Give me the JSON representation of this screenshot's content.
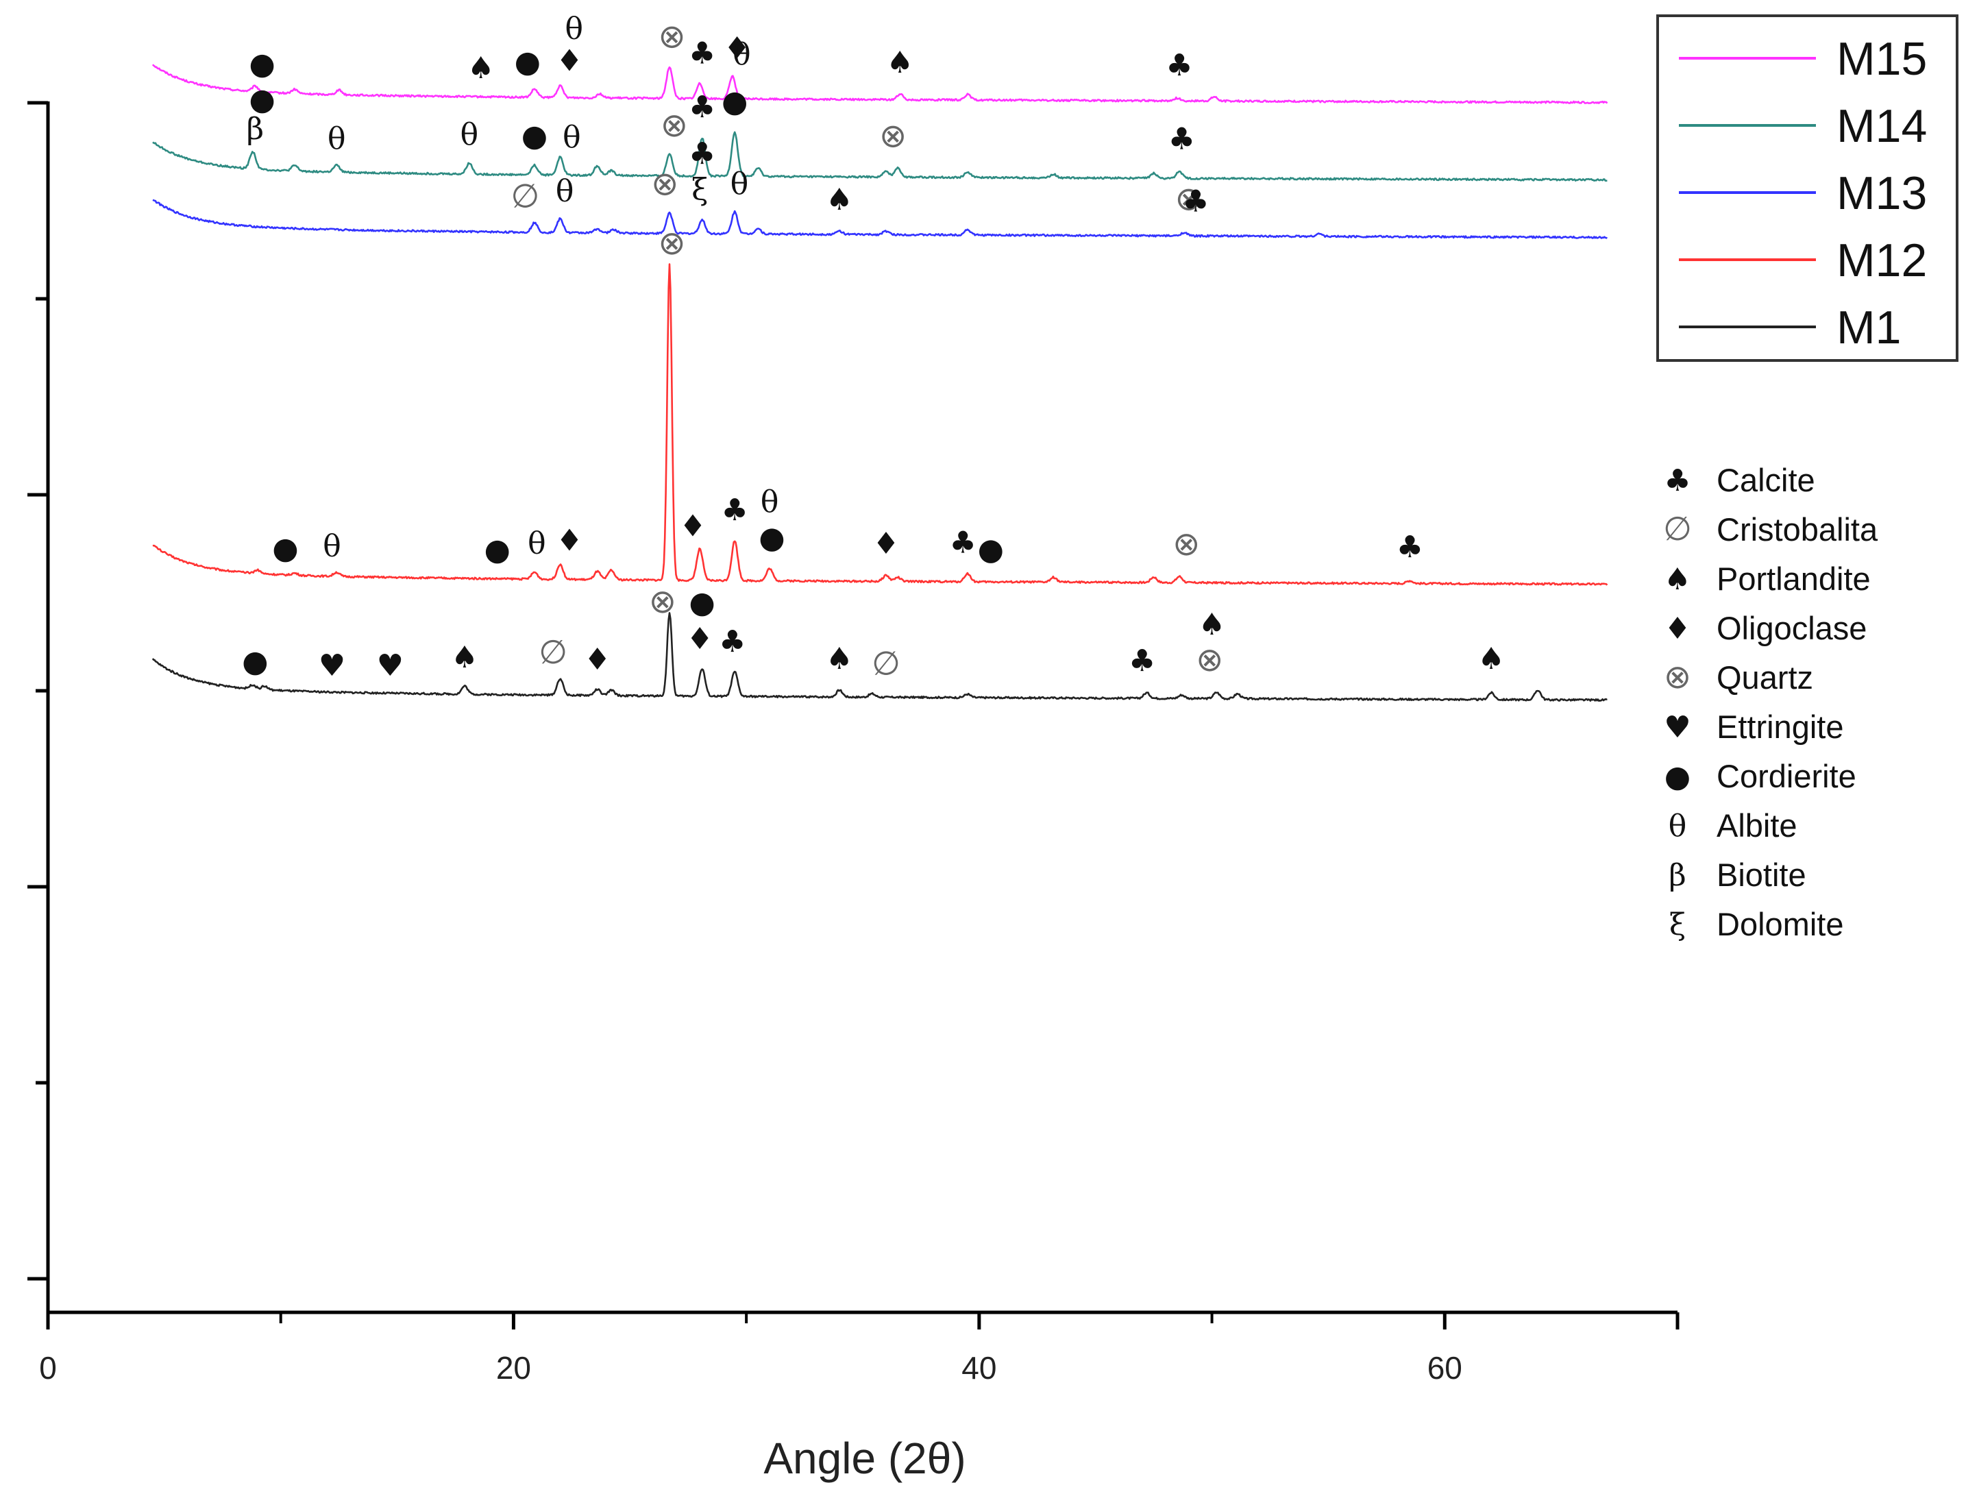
{
  "chart_data": {
    "type": "line",
    "title": "",
    "xlabel": "Angle (2θ)",
    "ylabel": "",
    "xlim": [
      0,
      70
    ],
    "x_ticks": [
      0,
      20,
      40,
      60
    ],
    "x_tick_labels": [
      "0",
      "20",
      "40",
      "60"
    ],
    "x_range": [
      4.5,
      67
    ],
    "grid": false,
    "legend": {
      "position": "top-right",
      "entries": [
        {
          "name": "M15",
          "color": "#ff33ff"
        },
        {
          "name": "M14",
          "color": "#2e8b82"
        },
        {
          "name": "M13",
          "color": "#3333ff"
        },
        {
          "name": "M12",
          "color": "#ff3333"
        },
        {
          "name": "M1",
          "color": "#222222"
        }
      ]
    },
    "series": [
      {
        "name": "M15",
        "color": "#ff33ff",
        "baseline": 142,
        "start_hump": 38,
        "peaks": [
          [
            8.9,
            8
          ],
          [
            10.6,
            6
          ],
          [
            12.5,
            7
          ],
          [
            20.9,
            12
          ],
          [
            22,
            17
          ],
          [
            23.7,
            6
          ],
          [
            26.7,
            46
          ],
          [
            28,
            22
          ],
          [
            29.4,
            33
          ],
          [
            36.6,
            8
          ],
          [
            39.5,
            8
          ],
          [
            48.5,
            4
          ],
          [
            50.1,
            6
          ]
        ]
      },
      {
        "name": "M14",
        "color": "#2e8b82",
        "baseline": 255,
        "start_hump": 38,
        "peaks": [
          [
            8.8,
            25
          ],
          [
            10.6,
            8
          ],
          [
            12.4,
            10
          ],
          [
            18.1,
            16
          ],
          [
            20.9,
            14
          ],
          [
            22,
            26
          ],
          [
            23.6,
            14
          ],
          [
            24.2,
            7
          ],
          [
            26.7,
            32
          ],
          [
            28.1,
            56
          ],
          [
            29.5,
            64
          ],
          [
            30.5,
            12
          ],
          [
            36,
            8
          ],
          [
            36.5,
            14
          ],
          [
            39.5,
            8
          ],
          [
            43.2,
            5
          ],
          [
            47.5,
            7
          ],
          [
            48.6,
            10
          ]
        ]
      },
      {
        "name": "M13",
        "color": "#3333ff",
        "baseline": 339,
        "start_hump": 38,
        "peaks": [
          [
            20.9,
            14
          ],
          [
            22,
            20
          ],
          [
            23.6,
            6
          ],
          [
            24.3,
            5
          ],
          [
            26.7,
            30
          ],
          [
            28.1,
            20
          ],
          [
            29.5,
            32
          ],
          [
            30.5,
            8
          ],
          [
            34,
            5
          ],
          [
            36,
            5
          ],
          [
            39.5,
            8
          ],
          [
            48.8,
            5
          ],
          [
            54.6,
            4
          ]
        ]
      },
      {
        "name": "M12",
        "color": "#ff3333",
        "baseline": 845,
        "start_hump": 40,
        "peaks": [
          [
            9,
            5
          ],
          [
            10.6,
            3
          ],
          [
            12.4,
            6
          ],
          [
            20.9,
            10
          ],
          [
            22,
            22
          ],
          [
            23.6,
            12
          ],
          [
            24.2,
            14
          ],
          [
            26.7,
            460
          ],
          [
            28,
            46
          ],
          [
            29.5,
            58
          ],
          [
            31,
            18
          ],
          [
            36,
            9
          ],
          [
            36.5,
            6
          ],
          [
            39.5,
            12
          ],
          [
            43.2,
            7
          ],
          [
            47.5,
            8
          ],
          [
            48.6,
            9
          ],
          [
            58.5,
            4
          ]
        ]
      },
      {
        "name": "M1",
        "color": "#222222",
        "baseline": 1014,
        "start_hump": 42,
        "peaks": [
          [
            8.8,
            6
          ],
          [
            9.3,
            5
          ],
          [
            17.9,
            12
          ],
          [
            22,
            24
          ],
          [
            23.6,
            9
          ],
          [
            24.2,
            8
          ],
          [
            26.7,
            122
          ],
          [
            28.1,
            40
          ],
          [
            29.5,
            36
          ],
          [
            34,
            10
          ],
          [
            35.4,
            5
          ],
          [
            39.5,
            5
          ],
          [
            47.2,
            8
          ],
          [
            48.7,
            5
          ],
          [
            50.2,
            9
          ],
          [
            51.1,
            7
          ],
          [
            62,
            10
          ],
          [
            64,
            14
          ]
        ]
      }
    ],
    "phases": [
      {
        "symbol": "♣",
        "name": "Calcite"
      },
      {
        "symbol": "∅",
        "name": "Cristobalita"
      },
      {
        "symbol": "♠",
        "name": "Portlandite"
      },
      {
        "symbol": "♦",
        "name": "Oligoclase"
      },
      {
        "symbol": "⊗",
        "name": "Quartz"
      },
      {
        "symbol": "♥",
        "name": "Ettringite"
      },
      {
        "symbol": "●",
        "name": "Cordierite"
      },
      {
        "symbol": "θ",
        "name": "Albite"
      },
      {
        "symbol": "β",
        "name": "Biotite"
      },
      {
        "symbol": "ξ",
        "name": "Dolomite"
      }
    ],
    "annotations": [
      {
        "series": "M15",
        "x": 9.2,
        "symbol": "●"
      },
      {
        "series": "M15",
        "x": 18.6,
        "symbol": "♠"
      },
      {
        "series": "M15",
        "x": 20.6,
        "symbol": "●"
      },
      {
        "series": "M15",
        "x": 22.4,
        "symbol": "♦"
      },
      {
        "series": "M15",
        "x": 22.6,
        "symbol": "θ"
      },
      {
        "series": "M15",
        "x": 26.8,
        "symbol": "⊗"
      },
      {
        "series": "M15",
        "x": 28.1,
        "symbol": "♣"
      },
      {
        "series": "M15",
        "x": 29.6,
        "symbol": "♦"
      },
      {
        "series": "M15",
        "x": 29.8,
        "symbol": "θ"
      },
      {
        "series": "M15",
        "x": 36.6,
        "symbol": "♠"
      },
      {
        "series": "M15",
        "x": 48.6,
        "symbol": "♣"
      },
      {
        "series": "M14",
        "x": 8.9,
        "symbol": "β"
      },
      {
        "series": "M14",
        "x": 9.2,
        "symbol": "●"
      },
      {
        "series": "M14",
        "x": 12.4,
        "symbol": "θ"
      },
      {
        "series": "M14",
        "x": 18.1,
        "symbol": "θ"
      },
      {
        "series": "M14",
        "x": 20.9,
        "symbol": "●"
      },
      {
        "series": "M14",
        "x": 22.5,
        "symbol": "θ"
      },
      {
        "series": "M14",
        "x": 26.9,
        "symbol": "⊗"
      },
      {
        "series": "M14",
        "x": 28.1,
        "symbol": "♣"
      },
      {
        "series": "M14",
        "x": 29.5,
        "symbol": "●"
      },
      {
        "series": "M14",
        "x": 36.3,
        "symbol": "⊗"
      },
      {
        "series": "M14",
        "x": 48.7,
        "symbol": "♣"
      },
      {
        "series": "M13",
        "x": 20.5,
        "symbol": "∅"
      },
      {
        "series": "M13",
        "x": 22.2,
        "symbol": "θ"
      },
      {
        "series": "M13",
        "x": 26.5,
        "symbol": "⊗"
      },
      {
        "series": "M13",
        "x": 28.0,
        "symbol": "ξ"
      },
      {
        "series": "M13",
        "x": 28.1,
        "symbol": "♣"
      },
      {
        "series": "M13",
        "x": 29.7,
        "symbol": "θ"
      },
      {
        "series": "M13",
        "x": 34.0,
        "symbol": "♠"
      },
      {
        "series": "M13",
        "x": 49.0,
        "symbol": "⊗"
      },
      {
        "series": "M13",
        "x": 49.3,
        "symbol": "♣"
      },
      {
        "series": "M12",
        "x": 26.8,
        "symbol": "⊗"
      },
      {
        "series": "M12",
        "x": 10.2,
        "symbol": "●"
      },
      {
        "series": "M12",
        "x": 12.2,
        "symbol": "θ"
      },
      {
        "series": "M12",
        "x": 19.3,
        "symbol": "●"
      },
      {
        "series": "M12",
        "x": 21.0,
        "symbol": "θ"
      },
      {
        "series": "M12",
        "x": 22.4,
        "symbol": "♦"
      },
      {
        "series": "M12",
        "x": 27.7,
        "symbol": "♦"
      },
      {
        "series": "M12",
        "x": 29.5,
        "symbol": "♣"
      },
      {
        "series": "M12",
        "x": 31.1,
        "symbol": "●"
      },
      {
        "series": "M12",
        "x": 31.0,
        "symbol": "θ"
      },
      {
        "series": "M12",
        "x": 36.0,
        "symbol": "♦"
      },
      {
        "series": "M12",
        "x": 39.3,
        "symbol": "♣"
      },
      {
        "series": "M12",
        "x": 40.5,
        "symbol": "●"
      },
      {
        "series": "M12",
        "x": 48.9,
        "symbol": "⊗"
      },
      {
        "series": "M12",
        "x": 58.5,
        "symbol": "♣"
      },
      {
        "series": "M1",
        "x": 8.9,
        "symbol": "●"
      },
      {
        "series": "M1",
        "x": 12.2,
        "symbol": "♥"
      },
      {
        "series": "M1",
        "x": 14.7,
        "symbol": "♥"
      },
      {
        "series": "M1",
        "x": 17.9,
        "symbol": "♠"
      },
      {
        "series": "M1",
        "x": 21.7,
        "symbol": "∅"
      },
      {
        "series": "M1",
        "x": 23.6,
        "symbol": "♦"
      },
      {
        "series": "M1",
        "x": 26.4,
        "symbol": "⊗"
      },
      {
        "series": "M1",
        "x": 28.0,
        "symbol": "♦"
      },
      {
        "series": "M1",
        "x": 28.1,
        "symbol": "●"
      },
      {
        "series": "M1",
        "x": 29.4,
        "symbol": "♣"
      },
      {
        "series": "M1",
        "x": 34.0,
        "symbol": "♠"
      },
      {
        "series": "M1",
        "x": 36.0,
        "symbol": "∅"
      },
      {
        "series": "M1",
        "x": 47.0,
        "symbol": "♣"
      },
      {
        "series": "M1",
        "x": 49.9,
        "symbol": "⊗"
      },
      {
        "series": "M1",
        "x": 50.0,
        "symbol": "♠"
      },
      {
        "series": "M1",
        "x": 62.0,
        "symbol": "♠"
      }
    ]
  }
}
